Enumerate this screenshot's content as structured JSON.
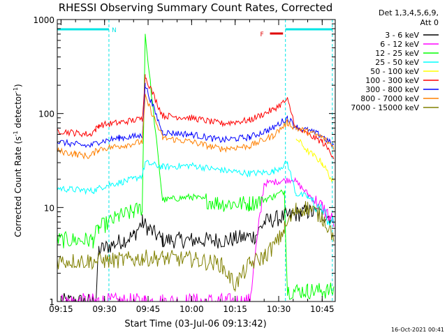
{
  "chart_data": {
    "type": "line",
    "title": "RHESSI Observing Summary Count Rates, Corrected",
    "xlabel": "Start Time (03-Jul-06 09:13:42)",
    "ylabel_parts": [
      "Corrected Count Rate (s",
      "-1",
      " detector",
      "-1",
      ")"
    ],
    "y_scale": "log",
    "ylim": [
      1,
      1000
    ],
    "xlim_minutes": [
      "09:13:42",
      "10:49:30"
    ],
    "x_ticks": [
      "09:15",
      "09:30",
      "09:45",
      "10:00",
      "10:15",
      "10:30",
      "10:45"
    ],
    "y_ticks": [
      "1",
      "10",
      "100",
      "1000"
    ],
    "grid": false,
    "legend_title": [
      "Det 1,3,4,5,6,9,",
      "Att 0"
    ],
    "legend_placement": "right",
    "footer": "16-Oct-2021 00:41",
    "flags": [
      {
        "label": "N",
        "color": "#00e5e5",
        "start": "09:13:42",
        "end": "09:31:30"
      },
      {
        "label": "F",
        "color": "#e00000",
        "start": "10:27:00",
        "end": "10:31:30"
      },
      {
        "label": "",
        "color": "#00e5e5",
        "start": "10:32:20",
        "end": "10:48:30"
      }
    ],
    "region_markers": [
      "09:31:30",
      "10:32:20",
      "10:48:30"
    ],
    "series": [
      {
        "name": "3 - 6 keV",
        "color": "#000000",
        "x": [
          "09:15",
          "09:27",
          "09:28",
          "09:40",
          "09:43",
          "09:45",
          "09:50",
          "10:00",
          "10:12",
          "10:22",
          "10:25",
          "10:32",
          "10:40",
          "10:48"
        ],
        "y": [
          1,
          1,
          3.5,
          5,
          7,
          6,
          4.5,
          4.5,
          4.5,
          5,
          7,
          8,
          9,
          8
        ]
      },
      {
        "name": "6 - 12 keV",
        "color": "#ff00ff",
        "x": [
          "09:15",
          "09:27",
          "09:28",
          "09:40",
          "09:43",
          "09:44",
          "09:50",
          "10:00",
          "10:10",
          "10:20",
          "10:25",
          "10:30",
          "10:35",
          "10:40",
          "10:45",
          "10:49"
        ],
        "y": [
          1,
          1,
          1,
          1,
          1,
          1,
          1,
          1,
          1,
          1,
          18,
          19,
          20,
          14,
          10,
          7
        ]
      },
      {
        "name": "12 - 25 keV",
        "color": "#00ff00",
        "x": [
          "09:13:42",
          "09:26",
          "09:28",
          "09:35",
          "09:40",
          "09:43",
          "09:44",
          "09:50",
          "10:00",
          "10:10",
          "10:20",
          "10:28",
          "10:32",
          "10:33",
          "10:40",
          "10:45",
          "10:49"
        ],
        "y": [
          4.5,
          4.5,
          6,
          8,
          9,
          10,
          700,
          12,
          13,
          11,
          11,
          13,
          15,
          1.3,
          1.3,
          1.3,
          1.3
        ]
      },
      {
        "name": "25 - 50 keV",
        "color": "#00ffff",
        "x": [
          "09:13:42",
          "09:26",
          "09:30",
          "09:40",
          "09:43",
          "09:44",
          "09:50",
          "10:00",
          "10:10",
          "10:20",
          "10:28",
          "10:33",
          "10:36",
          "10:40",
          "10:45",
          "10:49"
        ],
        "y": [
          16,
          15,
          17,
          20,
          22,
          30,
          27,
          28,
          25,
          23,
          24,
          30,
          14,
          13,
          9,
          6.5
        ]
      },
      {
        "name": "50 - 100 keV",
        "color": "#ffff00",
        "x": [
          "09:13:42",
          "09:30",
          "09:45",
          "10:00",
          "10:20",
          "10:33",
          "10:36",
          "10:40",
          "10:45",
          "10:49"
        ],
        "y": [
          0,
          0,
          0,
          0,
          0,
          0,
          55,
          40,
          30,
          18
        ]
      },
      {
        "name": "100 - 300 keV",
        "color": "#ff0000",
        "x": [
          "09:13:42",
          "09:20",
          "09:25",
          "09:27",
          "09:28",
          "09:35",
          "09:43",
          "09:44",
          "09:50",
          "10:00",
          "10:10",
          "10:20",
          "10:28",
          "10:33",
          "10:36",
          "10:40",
          "10:45",
          "10:49"
        ],
        "y": [
          66,
          62,
          60,
          68,
          75,
          80,
          88,
          250,
          95,
          90,
          78,
          85,
          110,
          140,
          70,
          60,
          50,
          35
        ]
      },
      {
        "name": "300 - 800 keV",
        "color": "#0000ff",
        "x": [
          "09:13:42",
          "09:20",
          "09:25",
          "09:28",
          "09:35",
          "09:43",
          "09:44",
          "09:50",
          "10:00",
          "10:10",
          "10:20",
          "10:28",
          "10:33",
          "10:36",
          "10:40",
          "10:45",
          "10:49"
        ],
        "y": [
          50,
          47,
          45,
          50,
          55,
          58,
          200,
          63,
          60,
          52,
          56,
          70,
          90,
          72,
          66,
          58,
          45
        ]
      },
      {
        "name": "800 - 7000 keV",
        "color": "#ff8000",
        "x": [
          "09:13:42",
          "09:20",
          "09:25",
          "09:28",
          "09:35",
          "09:43",
          "09:44",
          "09:50",
          "10:00",
          "10:10",
          "10:20",
          "10:28",
          "10:33",
          "10:36",
          "10:40",
          "10:45",
          "10:49"
        ],
        "y": [
          40,
          37,
          35,
          42,
          45,
          50,
          150,
          55,
          50,
          42,
          45,
          58,
          80,
          70,
          64,
          56,
          44
        ]
      },
      {
        "name": "7000 - 15000 keV",
        "color": "#808000",
        "x": [
          "09:13:42",
          "09:25",
          "09:30",
          "09:40",
          "09:43",
          "09:44",
          "09:50",
          "10:00",
          "10:10",
          "10:15",
          "10:20",
          "10:25",
          "10:30",
          "10:32",
          "10:36",
          "10:40",
          "10:45",
          "10:49"
        ],
        "y": [
          2.7,
          2.7,
          2.7,
          2.8,
          2.9,
          2.9,
          2.9,
          2.8,
          2.5,
          1.5,
          2.5,
          3,
          4.5,
          6,
          9.5,
          10,
          8,
          5
        ]
      }
    ]
  }
}
